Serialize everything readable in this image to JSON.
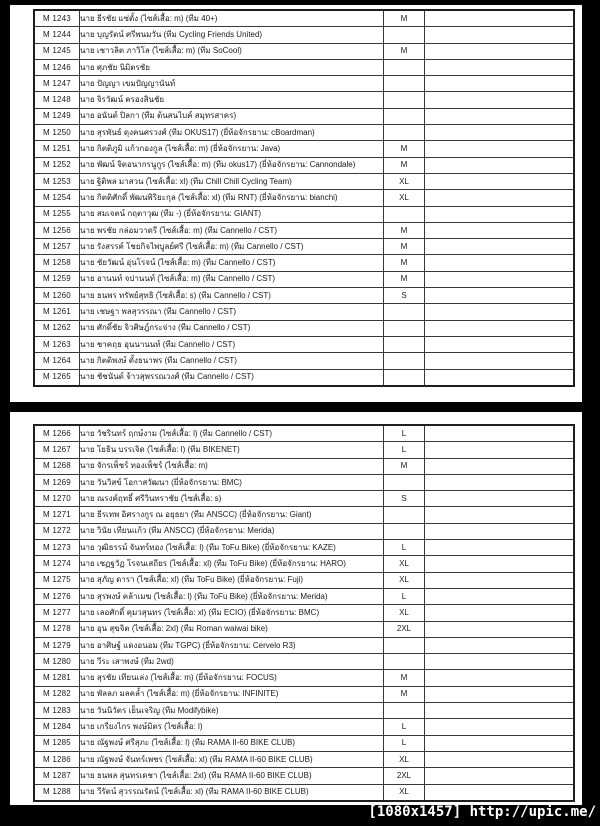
{
  "watermark": "[1080x1457] http://upic.me/",
  "columns": [
    "member_id",
    "name_details",
    "shirt_size",
    "notes"
  ],
  "tables": [
    {
      "rows": [
        {
          "id": "M 1243",
          "name": "นาย ธีรชัย แซ่ตั้ง (ไซส์เสื้อ: m) (ทีม 40+)",
          "size": "M"
        },
        {
          "id": "M 1244",
          "name": "นาย บุญรัตน์ ศรีพนมวัน (ทีม Cycling Friends United)",
          "size": ""
        },
        {
          "id": "M 1245",
          "name": "นาย เชาวลิต ภาวิโล (ไซส์เสื้อ: m) (ทีม SoCool)",
          "size": "M"
        },
        {
          "id": "M 1246",
          "name": "นาย ศุภชัย นิมิตรชัย",
          "size": ""
        },
        {
          "id": "M 1247",
          "name": "นาย ปัญญา เขมปัญญานันท์",
          "size": ""
        },
        {
          "id": "M 1248",
          "name": "นาย จิรวัฒน์ ครองสินชัย",
          "size": ""
        },
        {
          "id": "M 1249",
          "name": "นาย อนันต์ ปิลกา (ทีม ต้นสนไบค์ สมุทรสาคร)",
          "size": ""
        },
        {
          "id": "M 1250",
          "name": "นาย สุรพันธ์ ดุงคนศรวงศ์ (ทีม OKUS17) (ยี่ห้อจักรยาน: cBoardman)",
          "size": ""
        },
        {
          "id": "M 1251",
          "name": "นาย กิตติภูมิ แก้วกองกูล (ไซส์เสื้อ: m) (ยี่ห้อจักรยาน: Java)",
          "size": "M"
        },
        {
          "id": "M 1252",
          "name": "นาย พัฒน์ จิตอนากรนูกูร (ไซส์เสื้อ: m) (ทีม okus17) (ยี่ห้อจักรยาน: Cannondale)",
          "size": "M"
        },
        {
          "id": "M 1253",
          "name": "นาย ฐิติพล มาสวน (ไซส์เสื้อ: xl) (ทีม Chill Chill Cycling Team)",
          "size": "XL"
        },
        {
          "id": "M 1254",
          "name": "นาย กิตติศักดิ์ พัฒนพิริยะกุล (ไซส์เสื้อ: xl) (ทีม RNT) (ยี่ห้อจักรยาน: bianchi)",
          "size": "XL"
        },
        {
          "id": "M 1255",
          "name": "นาย สมเจตน์ กฤตาวุฒ (ทีม -) (ยี่ห้อจักรยาน: GIANT)",
          "size": ""
        },
        {
          "id": "M 1256",
          "name": "นาย พรชัย กล่อมวาดรี (ไซส์เสื้อ: m) (ทีม Cannello / CST)",
          "size": "M"
        },
        {
          "id": "M 1257",
          "name": "นาย รังสรรค์ โชยกิจไพบูลย์ศรี (ไซส์เสื้อ: m) (ทีม Cannello / CST)",
          "size": "M"
        },
        {
          "id": "M 1258",
          "name": "นาย ชัยวัฒน์ อุ่นโรจน์ (ไซส์เสื้อ: m) (ทีม Cannello / CST)",
          "size": "M"
        },
        {
          "id": "M 1259",
          "name": "นาย อานนท์ จปานนท์ (ไซส์เสื้อ: m) (ทีม Cannello / CST)",
          "size": "M"
        },
        {
          "id": "M 1260",
          "name": "นาย ธนพร ทรัพย์สุทธิ (ไซส์เสื้อ: s) (ทีม Cannello / CST)",
          "size": "S"
        },
        {
          "id": "M 1261",
          "name": "นาย เชษฐา พลสุวรรณา (ทีม Cannello / CST)",
          "size": ""
        },
        {
          "id": "M 1262",
          "name": "นาย ศักดิ์ชัย จิวศิษฎ์กระจ่าง (ทีม Cannello / CST)",
          "size": ""
        },
        {
          "id": "M 1263",
          "name": "นาย ชาคฤธ อุนนานนท์ (ทีม Cannello / CST)",
          "size": ""
        },
        {
          "id": "M 1264",
          "name": "นาย กิตติพงษ์ ตั้งธนาพร (ทีม Cannello / CST)",
          "size": ""
        },
        {
          "id": "M 1265",
          "name": "นาย ชัชนันต์ จ้าวสุพรรณวงศ์ (ทีม Cannello / CST)",
          "size": ""
        }
      ]
    },
    {
      "rows": [
        {
          "id": "M 1266",
          "name": "นาย วัชรินทร์ ฤกษ์งาม (ไซส์เสื้อ: l) (ทีม Cannello / CST)",
          "size": "L"
        },
        {
          "id": "M 1267",
          "name": "นาย โยธิน บรรเจิด (ไซส์เสื้อ: l) (ทีม BIKENET)",
          "size": "L"
        },
        {
          "id": "M 1268",
          "name": "นาย จักรเพ็ชร์ ทองเพ็ชร์ (ไซส์เสื้อ: m)",
          "size": "M"
        },
        {
          "id": "M 1269",
          "name": "นาย วันวิสข์ โอกาสวัฒนา (ยี่ห้อจักรยาน: BMC)",
          "size": ""
        },
        {
          "id": "M 1270",
          "name": "นาย ณรงค์ฤทธิ์ ศรีวินทราชัย (ไซส์เสื้อ: s)",
          "size": "S"
        },
        {
          "id": "M 1271",
          "name": "นาย ธีรเทพ อิศรางกูร ณ อยุธยา (ทีม ANSCC) (ยี่ห้อจักรยาน: Giant)",
          "size": ""
        },
        {
          "id": "M 1272",
          "name": "นาย วินัย เทียนแก้ว (ทีม ANSCC) (ยี่ห้อจักรยาน: Merida)",
          "size": ""
        },
        {
          "id": "M 1273",
          "name": "นาย วุฒิธรรม์ จันทร์ทอง (ไซส์เสื้อ: l) (ทีม ToFu Bike) (ยี่ห้อจักรยาน: KAZE)",
          "size": "L"
        },
        {
          "id": "M 1274",
          "name": "นาย เชฏฐวัฏ โรจนเสถียร (ไซส์เสื้อ: xl) (ทีม ToFu Bike) (ยี่ห้อจักรยาน: HARO)",
          "size": "XL"
        },
        {
          "id": "M 1275",
          "name": "นาย สุภัญ ดารา (ไซส์เสื้อ: xl) (ทีม ToFu Bike) (ยี่ห้อจักรยาน: Fuji)",
          "size": "XL"
        },
        {
          "id": "M 1276",
          "name": "นาย สุรพงษ์ คล้าเมฆ (ไซส์เสื้อ: l) (ทีม ToFu Bike) (ยี่ห้อจักรยาน: Merida)",
          "size": "L"
        },
        {
          "id": "M 1277",
          "name": "นาย เลอศักดิ์ คุมวสุนทร (ไซส์เสื้อ: xl) (ทีม ECIO) (ยี่ห้อจักรยาน: BMC)",
          "size": "XL"
        },
        {
          "id": "M 1278",
          "name": "นาย อุน สุขจิต (ไซส์เสื้อ: 2xl) (ทีม Roman waiwai bike)",
          "size": "2XL"
        },
        {
          "id": "M 1279",
          "name": "นาย อาศิษฐ์ แดงอนอม (ทีม TGPC) (ยี่ห้อจักรยาน: Cervelo R3)",
          "size": ""
        },
        {
          "id": "M 1280",
          "name": "นาย วีระ เสาพงษ์ (ทีม 2wd)",
          "size": ""
        },
        {
          "id": "M 1281",
          "name": "นาย สุรชัย เทียนเล่ง (ไซส์เสื้อ: m) (ยี่ห้อจักรยาน: FOCUS)",
          "size": "M"
        },
        {
          "id": "M 1282",
          "name": "นาย พัลลภ มลคล้ำ (ไซส์เสื้อ: m) (ยี่ห้อจักรยาน: INFINITE)",
          "size": "M"
        },
        {
          "id": "M 1283",
          "name": "นาย วันนิวัตร เย็นเจริญ (ทีม Modifybike)",
          "size": ""
        },
        {
          "id": "M 1284",
          "name": "นาย เกรียงไกร พงษ์มิตร (ไซส์เสื้อ: l)",
          "size": "L"
        },
        {
          "id": "M 1285",
          "name": "นาย ณัฐพงษ์ ศรีสุภะ (ไซส์เสื้อ: l) (ทีม RAMA II-60 BIKE CLUB)",
          "size": "L"
        },
        {
          "id": "M 1286",
          "name": "นาย ณัฐพงษ์ จันทร์เพชร (ไซส์เสื้อ: xl) (ทีม RAMA II-60 BIKE CLUB)",
          "size": "XL"
        },
        {
          "id": "M 1287",
          "name": "นาย ธนพล สุนทรเดชา (ไซส์เสื้อ: 2xl) (ทีม RAMA II-60 BIKE CLUB)",
          "size": "2XL"
        },
        {
          "id": "M 1288",
          "name": "นาย วีรัตน์ สุวรรณรัตน์ (ไซส์เสื้อ: xl) (ทีม RAMA II-60 BIKE CLUB)",
          "size": "XL"
        }
      ]
    }
  ]
}
